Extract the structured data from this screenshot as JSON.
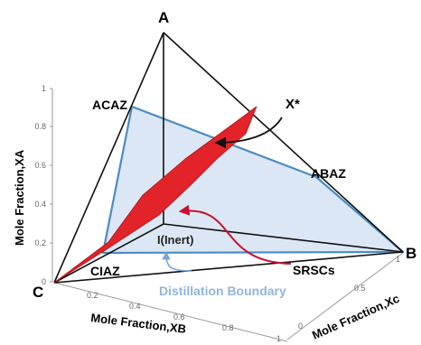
{
  "diagram": {
    "vertices": {
      "a": "A",
      "b": "B",
      "c": "C"
    },
    "azeotropes": {
      "acaz": "ACAZ",
      "abaz": "ABAZ",
      "ciaz": "CIAZ"
    },
    "labels": {
      "x_star": "X*",
      "inert": "I(Inert)",
      "srscs": "SRSCs",
      "boundary": "Distillation Boundary"
    },
    "axes": {
      "y_label": "Mole Fraction,XA",
      "x_label": "Mole Fraction,XB",
      "z_label": "Mole Fraction,Xc"
    },
    "ticks": {
      "xa": [
        "0",
        "0.2",
        "0.4",
        "0.6",
        "0.8",
        "1"
      ],
      "xb": [
        "0.2",
        "0.4",
        "0.6",
        "0.8",
        "1"
      ],
      "xc": [
        "0",
        "0.5",
        "1"
      ]
    },
    "colors": {
      "plane_fill": "#d6e3f3",
      "plane_edge": "#4a8cc0",
      "surface": "#e2232a",
      "boundary_text": "#8fb5dc",
      "arrow_red": "#c8102e",
      "arrow_blue": "#7aa6d6"
    }
  }
}
